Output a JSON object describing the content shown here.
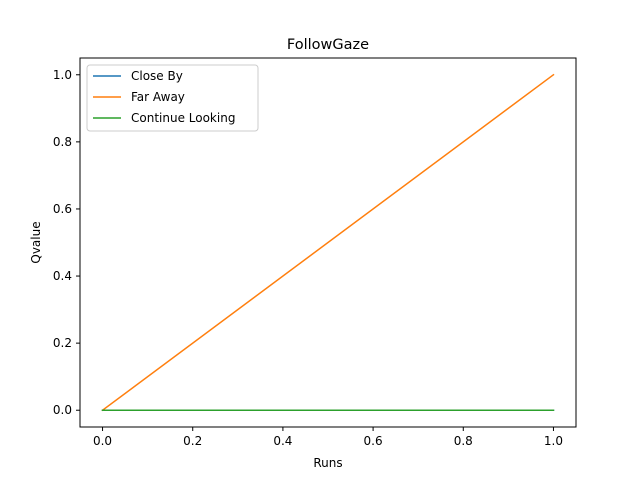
{
  "chart_data": {
    "type": "line",
    "title": "FollowGaze",
    "xlabel": "Runs",
    "ylabel": "Qvalue",
    "xlim": [
      -0.05,
      1.05
    ],
    "ylim": [
      -0.05,
      1.05
    ],
    "xticks": [
      0.0,
      0.2,
      0.4,
      0.6,
      0.8,
      1.0
    ],
    "xtick_labels": [
      "0.0",
      "0.2",
      "0.4",
      "0.6",
      "0.8",
      "1.0"
    ],
    "yticks": [
      0.0,
      0.2,
      0.4,
      0.6,
      0.8,
      1.0
    ],
    "ytick_labels": [
      "0.0",
      "0.2",
      "0.4",
      "0.6",
      "0.8",
      "1.0"
    ],
    "grid": false,
    "legend_position": "top-left",
    "x": [
      0,
      1
    ],
    "series": [
      {
        "name": "Close By",
        "values": [
          0,
          0
        ],
        "color": "#1f77b4"
      },
      {
        "name": "Far Away",
        "values": [
          0,
          1
        ],
        "color": "#ff7f0e"
      },
      {
        "name": "Continue Looking",
        "values": [
          0,
          0
        ],
        "color": "#2ca02c"
      }
    ]
  }
}
